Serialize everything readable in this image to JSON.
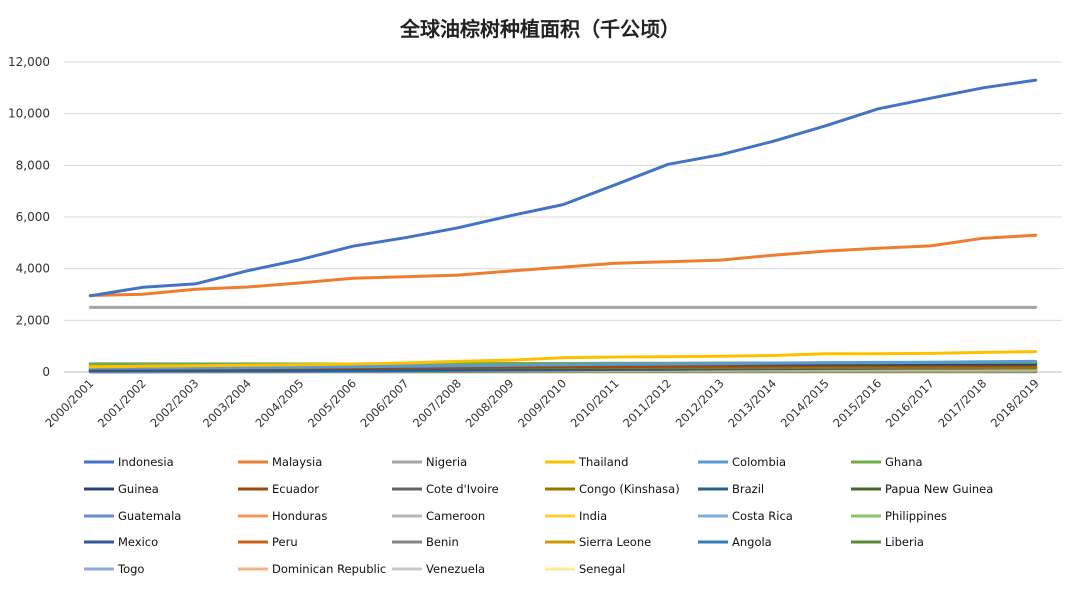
{
  "chart_data": {
    "type": "line",
    "title": "全球油棕树种植面积（千公顷）",
    "xlabel": "",
    "ylabel": "",
    "ylim": [
      0,
      12000
    ],
    "yticks": [
      0,
      2000,
      4000,
      6000,
      8000,
      10000,
      12000
    ],
    "ytick_labels": [
      "0",
      "2,000",
      "4,000",
      "6,000",
      "8,000",
      "10,000",
      "12,000"
    ],
    "grid": "horizontal",
    "legend_position": "bottom",
    "categories": [
      "2000/2001",
      "2001/2002",
      "2002/2003",
      "2003/2004",
      "2004/2005",
      "2005/2006",
      "2006/2007",
      "2007/2008",
      "2008/2009",
      "2009/2010",
      "2010/2011",
      "2011/2012",
      "2012/2013",
      "2013/2014",
      "2014/2015",
      "2015/2016",
      "2016/2017",
      "2017/2018",
      "2018/2019"
    ],
    "series": [
      {
        "name": "Indonesia",
        "color": "#4472C4",
        "width": 3,
        "values": [
          2950,
          3280,
          3410,
          3920,
          4350,
          4870,
          5200,
          5580,
          6050,
          6480,
          7250,
          8040,
          8410,
          8930,
          9530,
          10190,
          10600,
          11000,
          11300
        ]
      },
      {
        "name": "Malaysia",
        "color": "#ED7D31",
        "width": 3,
        "values": [
          2960,
          3010,
          3200,
          3290,
          3450,
          3630,
          3690,
          3750,
          3910,
          4060,
          4210,
          4270,
          4330,
          4520,
          4680,
          4790,
          4880,
          5180,
          5290
        ]
      },
      {
        "name": "Nigeria",
        "color": "#A5A5A5",
        "width": 3,
        "values": [
          2500,
          2500,
          2500,
          2500,
          2500,
          2500,
          2500,
          2500,
          2500,
          2500,
          2500,
          2500,
          2500,
          2500,
          2500,
          2500,
          2500,
          2500,
          2500
        ]
      },
      {
        "name": "Thailand",
        "color": "#FFC000",
        "width": 3,
        "values": [
          200,
          220,
          240,
          260,
          280,
          310,
          350,
          410,
          460,
          550,
          580,
          590,
          610,
          640,
          710,
          710,
          720,
          760,
          790
        ]
      },
      {
        "name": "Colombia",
        "color": "#5B9BD5",
        "width": 3,
        "values": [
          150,
          155,
          160,
          170,
          180,
          200,
          220,
          240,
          260,
          280,
          300,
          310,
          320,
          340,
          360,
          370,
          380,
          400,
          410
        ]
      },
      {
        "name": "Ghana",
        "color": "#70AD47",
        "width": 3,
        "values": [
          300,
          300,
          305,
          305,
          310,
          310,
          320,
          320,
          330,
          330,
          340,
          340,
          350,
          350,
          360,
          360,
          370,
          370,
          380
        ]
      },
      {
        "name": "Guinea",
        "color": "#264478",
        "width": 3,
        "values": [
          310,
          310,
          310,
          310,
          310,
          310,
          310,
          310,
          310,
          310,
          310,
          310,
          310,
          310,
          310,
          310,
          310,
          310,
          310
        ]
      },
      {
        "name": "Ecuador",
        "color": "#9E480E",
        "width": 3,
        "values": [
          130,
          135,
          140,
          145,
          150,
          160,
          170,
          180,
          190,
          200,
          210,
          220,
          230,
          240,
          250,
          260,
          260,
          265,
          270
        ]
      },
      {
        "name": "Cote d'Ivoire",
        "color": "#636363",
        "width": 3,
        "values": [
          210,
          210,
          210,
          210,
          215,
          215,
          220,
          220,
          225,
          230,
          235,
          240,
          245,
          250,
          255,
          260,
          265,
          270,
          275
        ]
      },
      {
        "name": "Congo (Kinshasa)",
        "color": "#997300",
        "width": 3,
        "values": [
          170,
          170,
          170,
          170,
          170,
          175,
          175,
          175,
          175,
          175,
          175,
          175,
          175,
          175,
          175,
          175,
          175,
          175,
          175
        ]
      },
      {
        "name": "Brazil",
        "color": "#255E91",
        "width": 3,
        "values": [
          50,
          55,
          55,
          60,
          60,
          65,
          70,
          75,
          80,
          90,
          100,
          110,
          120,
          130,
          140,
          150,
          160,
          170,
          180
        ]
      },
      {
        "name": "Papua New Guinea",
        "color": "#43682B",
        "width": 3,
        "values": [
          90,
          95,
          100,
          105,
          110,
          115,
          120,
          125,
          130,
          135,
          140,
          145,
          150,
          150,
          155,
          160,
          160,
          165,
          170
        ]
      },
      {
        "name": "Guatemala",
        "color": "#698ED0",
        "width": 3,
        "values": [
          20,
          25,
          30,
          35,
          40,
          45,
          55,
          65,
          75,
          85,
          95,
          105,
          115,
          125,
          135,
          140,
          145,
          150,
          155
        ]
      },
      {
        "name": "Honduras",
        "color": "#F1975A",
        "width": 3,
        "values": [
          60,
          62,
          64,
          66,
          70,
          75,
          80,
          85,
          90,
          95,
          100,
          105,
          110,
          115,
          120,
          125,
          130,
          135,
          140
        ]
      },
      {
        "name": "Cameroon",
        "color": "#B7B7B7",
        "width": 3,
        "values": [
          120,
          120,
          122,
          124,
          126,
          128,
          130,
          132,
          134,
          136,
          138,
          140,
          142,
          144,
          146,
          148,
          150,
          152,
          154
        ]
      },
      {
        "name": "India",
        "color": "#FFCD33",
        "width": 3,
        "values": [
          40,
          42,
          45,
          48,
          50,
          55,
          60,
          65,
          70,
          75,
          80,
          85,
          90,
          95,
          100,
          105,
          110,
          115,
          120
        ]
      },
      {
        "name": "Costa Rica",
        "color": "#7CAFDD",
        "width": 3,
        "values": [
          40,
          42,
          44,
          46,
          48,
          50,
          52,
          54,
          56,
          58,
          60,
          62,
          64,
          66,
          68,
          70,
          72,
          74,
          76
        ]
      },
      {
        "name": "Philippines",
        "color": "#8CC168",
        "width": 3,
        "values": [
          30,
          31,
          32,
          33,
          34,
          35,
          36,
          37,
          38,
          39,
          40,
          41,
          42,
          43,
          44,
          45,
          46,
          47,
          48
        ]
      },
      {
        "name": "Mexico",
        "color": "#335AA1",
        "width": 3,
        "values": [
          15,
          17,
          19,
          21,
          23,
          25,
          28,
          31,
          34,
          37,
          40,
          43,
          46,
          49,
          52,
          55,
          58,
          61,
          64
        ]
      },
      {
        "name": "Peru",
        "color": "#D26012",
        "width": 3,
        "values": [
          10,
          12,
          14,
          16,
          18,
          20,
          22,
          24,
          26,
          28,
          30,
          32,
          34,
          36,
          38,
          40,
          42,
          44,
          46
        ]
      },
      {
        "name": "Benin",
        "color": "#848484",
        "width": 3,
        "values": [
          30,
          30,
          30,
          30,
          30,
          30,
          30,
          30,
          30,
          30,
          30,
          30,
          30,
          30,
          30,
          30,
          30,
          30,
          30
        ]
      },
      {
        "name": "Sierra Leone",
        "color": "#CC9A00",
        "width": 3,
        "values": [
          25,
          25,
          25,
          25,
          25,
          25,
          25,
          25,
          25,
          25,
          25,
          25,
          25,
          25,
          25,
          25,
          25,
          25,
          25
        ]
      },
      {
        "name": "Angola",
        "color": "#327DC2",
        "width": 3,
        "values": [
          20,
          20,
          20,
          20,
          20,
          20,
          20,
          20,
          20,
          20,
          20,
          20,
          20,
          20,
          20,
          20,
          20,
          20,
          20
        ]
      },
      {
        "name": "Liberia",
        "color": "#5A8A39",
        "width": 3,
        "values": [
          18,
          18,
          18,
          18,
          18,
          18,
          18,
          18,
          18,
          18,
          18,
          18,
          18,
          18,
          18,
          18,
          18,
          18,
          18
        ]
      },
      {
        "name": "Togo",
        "color": "#8FAADC",
        "width": 3,
        "values": [
          12,
          12,
          12,
          12,
          12,
          12,
          12,
          12,
          12,
          12,
          12,
          12,
          12,
          12,
          12,
          12,
          12,
          12,
          12
        ]
      },
      {
        "name": "Dominican Republic",
        "color": "#F4B183",
        "width": 3,
        "values": [
          10,
          10,
          10,
          10,
          10,
          10,
          10,
          10,
          10,
          10,
          10,
          10,
          10,
          10,
          10,
          10,
          10,
          10,
          10
        ]
      },
      {
        "name": "Venezuela",
        "color": "#C9C9C9",
        "width": 3,
        "values": [
          8,
          8,
          8,
          8,
          8,
          8,
          8,
          8,
          8,
          8,
          8,
          8,
          8,
          8,
          8,
          8,
          8,
          8,
          8
        ]
      },
      {
        "name": "Senegal",
        "color": "#FFE699",
        "width": 3,
        "values": [
          5,
          5,
          5,
          5,
          5,
          5,
          5,
          5,
          5,
          5,
          5,
          5,
          5,
          5,
          5,
          5,
          5,
          5,
          5
        ]
      }
    ]
  }
}
